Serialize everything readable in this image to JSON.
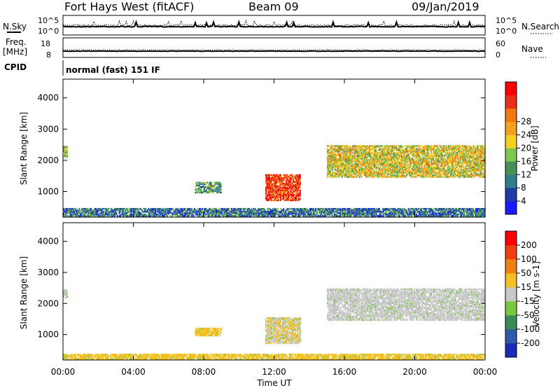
{
  "header": {
    "station": "Fort Hays West (fitACF)",
    "beam": "Beam 09",
    "date": "09/Jan/2019"
  },
  "mini_panels": {
    "nsky_label": "N.Sky",
    "nsearch_label": "N.Search",
    "nsky_ticks": [
      "10^5",
      "10^0"
    ],
    "nsearch_ticks": [
      "10^5",
      "10^0"
    ],
    "freq_label": "Freq.",
    "freq_unit": "[MHz]",
    "freq_ticks": [
      "18",
      "8"
    ],
    "nave_label": "Nave",
    "nave_ticks": [
      "60",
      "0"
    ],
    "cpid_label": "CPID",
    "cpid_text": "normal (fast) 151 IF"
  },
  "chart_data": [
    {
      "type": "heatmap",
      "name": "power-panel",
      "ylabel": "Slant Range [km]",
      "yticks": [
        "1000",
        "2000",
        "3000",
        "4000"
      ],
      "ylim": [
        180,
        4600
      ],
      "xticks": [
        "00:00",
        "04:00",
        "08:00",
        "12:00",
        "16:00",
        "20:00",
        "00:00"
      ],
      "xlim_hours": [
        0,
        24
      ],
      "colorbar": {
        "label": "Power [dB]",
        "ticks": [
          "4",
          "8",
          "12",
          "16",
          "20",
          "24",
          "28"
        ],
        "colors": [
          "#1a1aff",
          "#1e3aa6",
          "#2e7d8a",
          "#4a8f5a",
          "#7ec850",
          "#f4d020",
          "#f5a020",
          "#f07a10",
          "#e83018",
          "#ff0000"
        ]
      },
      "regions": [
        {
          "start": "00:00",
          "end": "00:15",
          "range_km": [
            2100,
            2450
          ],
          "level_db": 12
        },
        {
          "start": "07:30",
          "end": "09:00",
          "range_km": [
            950,
            1300
          ],
          "level_db": 10
        },
        {
          "start": "11:30",
          "end": "13:30",
          "range_km": [
            700,
            1550
          ],
          "level_db": 26
        },
        {
          "start": "15:00",
          "end": "24:00",
          "range_km": [
            1450,
            2500
          ],
          "level_db": 18
        },
        {
          "start": "00:00",
          "end": "24:00",
          "range_km": [
            200,
            450
          ],
          "level_db": 8
        }
      ]
    },
    {
      "type": "heatmap",
      "name": "velocity-panel",
      "ylabel": "Slant Range [km]",
      "yticks": [
        "1000",
        "2000",
        "3000",
        "4000"
      ],
      "ylim": [
        180,
        4600
      ],
      "xticks": [
        "00:00",
        "04:00",
        "08:00",
        "12:00",
        "16:00",
        "20:00",
        "00:00"
      ],
      "xlabel": "Time UT",
      "colorbar": {
        "label": "Velocity [m s-1]",
        "ticks": [
          "200",
          "100",
          "50",
          "15",
          "-15",
          "-50",
          "-100",
          "-200"
        ],
        "colors": [
          "#1c2ab8",
          "#2e5aa8",
          "#3a8a5a",
          "#7ac840",
          "#c8c8c8",
          "#f4c020",
          "#f08010",
          "#ee4010",
          "#ff0000"
        ]
      },
      "regions": [
        {
          "start": "00:00",
          "end": "00:15",
          "range_km": [
            2150,
            2450
          ],
          "velocity": 0
        },
        {
          "start": "07:30",
          "end": "09:00",
          "range_km": [
            950,
            1200
          ],
          "velocity": -50
        },
        {
          "start": "11:30",
          "end": "13:30",
          "range_km": [
            700,
            1550
          ],
          "velocity": -30
        },
        {
          "start": "15:00",
          "end": "24:00",
          "range_km": [
            1450,
            2500
          ],
          "velocity": 0
        },
        {
          "start": "00:00",
          "end": "24:00",
          "range_km": [
            200,
            400
          ],
          "velocity": -40
        }
      ]
    }
  ]
}
